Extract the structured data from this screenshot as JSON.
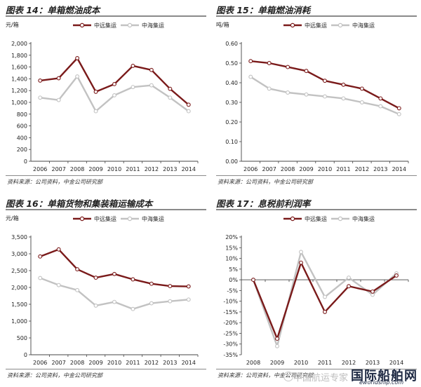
{
  "colors": {
    "coscon": "#7a1a1a",
    "cscl": "#c2c2c2",
    "rule": "#8a8a8a"
  },
  "panels": [
    {
      "title": "图表 14：单箱燃油成本",
      "source": "资料来源：公司资料，中金公司研究部",
      "chart_data": {
        "type": "line",
        "ylabel": "元/箱",
        "categories": [
          "2006",
          "2007",
          "2008",
          "2009",
          "2010",
          "2011",
          "2012",
          "2013",
          "2014"
        ],
        "ylim": [
          0,
          2000
        ],
        "yticks": [
          0,
          200,
          400,
          600,
          800,
          1000,
          1200,
          1400,
          1600,
          1800,
          2000
        ],
        "ytick_labels": [
          "0",
          "200",
          "400",
          "600",
          "800",
          "1,000",
          "1,200",
          "1,400",
          "1,600",
          "1,800",
          "2,000"
        ],
        "legend_position": "top",
        "series": [
          {
            "name": "中远集运",
            "values": [
              1370,
              1410,
              1750,
              1180,
              1310,
              1620,
              1550,
              1230,
              960
            ]
          },
          {
            "name": "中海集运",
            "values": [
              1080,
              1040,
              1440,
              850,
              1120,
              1260,
              1290,
              1080,
              850
            ]
          }
        ]
      }
    },
    {
      "title": "图表 15：单箱燃油消耗",
      "source": "资料来源：公司资料，中金公司研究部",
      "chart_data": {
        "type": "line",
        "ylabel": "吨/箱",
        "categories": [
          "2006",
          "2007",
          "2008",
          "2009",
          "2010",
          "2011",
          "2012",
          "2013",
          "2014"
        ],
        "ylim": [
          0,
          0.6
        ],
        "yticks": [
          0,
          0.1,
          0.2,
          0.3,
          0.4,
          0.5,
          0.6
        ],
        "ytick_labels": [
          "0.00",
          "0.10",
          "0.20",
          "0.30",
          "0.40",
          "0.50",
          "0.60"
        ],
        "legend_position": "top",
        "series": [
          {
            "name": "中远集运",
            "values": [
              0.51,
              0.5,
              0.48,
              0.46,
              0.41,
              0.39,
              0.37,
              0.32,
              0.27
            ]
          },
          {
            "name": "中海集运",
            "values": [
              0.43,
              0.37,
              0.35,
              0.34,
              0.33,
              0.32,
              0.3,
              0.28,
              0.24
            ]
          }
        ]
      }
    },
    {
      "title": "图表 16：单箱货物和集装箱运输成本",
      "source": "资料来源：公司资料，中金公司研究部",
      "chart_data": {
        "type": "line",
        "ylabel": "元/箱",
        "categories": [
          "2006",
          "2007",
          "2008",
          "2009",
          "2010",
          "2011",
          "2012",
          "2013",
          "2014"
        ],
        "ylim": [
          0,
          3500
        ],
        "yticks": [
          0,
          500,
          1000,
          1500,
          2000,
          2500,
          3000,
          3500
        ],
        "ytick_labels": [
          "0",
          "500",
          "1,000",
          "1,500",
          "2,000",
          "2,500",
          "3,000",
          "3,500"
        ],
        "legend_position": "top",
        "series": [
          {
            "name": "中远集运",
            "values": [
              2920,
              3130,
              2540,
              2290,
              2400,
              2240,
              2110,
              2040,
              2030
            ]
          },
          {
            "name": "中海集运",
            "values": [
              2280,
              2070,
              1920,
              1460,
              1570,
              1360,
              1530,
              1590,
              1640
            ]
          }
        ]
      }
    },
    {
      "title": "图表 17：息税前利润率",
      "source": "资料来源：公司资料，中金公司研究部",
      "chart_data": {
        "type": "line",
        "ylabel": "",
        "categories": [
          "2008",
          "2009",
          "2010",
          "2011",
          "2012",
          "2013",
          "2014"
        ],
        "ylim": [
          -35,
          20
        ],
        "yticks": [
          -35,
          -30,
          -25,
          -20,
          -15,
          -10,
          -5,
          0,
          5,
          10,
          15,
          20
        ],
        "ytick_labels": [
          "-35%",
          "-30%",
          "-25%",
          "-20%",
          "-15%",
          "-10%",
          "-5%",
          "0%",
          "5%",
          "10%",
          "15%",
          "20%"
        ],
        "legend_position": "top",
        "series": [
          {
            "name": "中远集运",
            "values": [
              0,
              -27.5,
              8,
              -15,
              -3,
              -5.5,
              2
            ]
          },
          {
            "name": "中海集运",
            "values": [
              0,
              -31,
              13,
              -8,
              1,
              -7,
              3
            ]
          }
        ]
      }
    }
  ],
  "watermark": "中国航运专家",
  "brand": {
    "name": "国际船舶网",
    "url": "eworldship.com"
  }
}
